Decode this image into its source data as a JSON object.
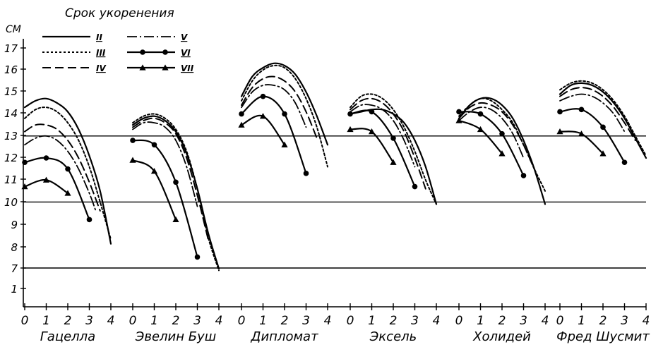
{
  "chart_data": {
    "type": "line",
    "title": "Срок укоренения",
    "ylabel": "СМ",
    "y_ticks": [
      "17",
      "16",
      "15",
      "14",
      "13",
      "12",
      "11",
      "10",
      "9",
      "8",
      "7",
      "1"
    ],
    "x_ticks": [
      "0",
      "1",
      "2",
      "3",
      "4"
    ],
    "reference_lines": [
      13,
      10,
      7
    ],
    "legend_placement": "top-left",
    "legend": [
      {
        "label": "II",
        "style": "solid"
      },
      {
        "label": "III",
        "style": "dotted"
      },
      {
        "label": "IV",
        "style": "dashed"
      },
      {
        "label": "V",
        "style": "dashdot"
      },
      {
        "label": "VI",
        "style": "circle"
      },
      {
        "label": "VII",
        "style": "triangle"
      }
    ],
    "groups": [
      {
        "label": "Гацелла",
        "series": [
          {
            "style": "solid",
            "x": [
              0,
              0.5,
              1,
              1.5,
              2,
              2.5,
              3,
              3.5,
              4
            ],
            "y": [
              14.3,
              14.6,
              14.7,
              14.5,
              14.1,
              13.3,
              12.1,
              10.5,
              8.1
            ]
          },
          {
            "style": "dotted",
            "x": [
              0,
              0.5,
              1,
              1.5,
              2,
              2.5,
              3,
              3.5,
              4
            ],
            "y": [
              13.8,
              14.2,
              14.3,
              14.1,
              13.6,
              12.8,
              11.6,
              10.0,
              8.3
            ]
          },
          {
            "style": "dashed",
            "x": [
              0,
              0.5,
              1,
              1.5,
              2,
              2.5,
              3,
              3.5
            ],
            "y": [
              13.2,
              13.5,
              13.5,
              13.3,
              12.8,
              12.0,
              10.9,
              9.6
            ]
          },
          {
            "style": "dashdot",
            "x": [
              0,
              0.5,
              1,
              1.5,
              2,
              2.5,
              3,
              3.3
            ],
            "y": [
              12.6,
              12.9,
              13.0,
              12.8,
              12.3,
              11.5,
              10.4,
              9.6
            ]
          },
          {
            "style": "circle",
            "x": [
              0,
              1,
              2,
              3
            ],
            "y": [
              11.8,
              12.0,
              11.5,
              9.2
            ]
          },
          {
            "style": "triangle",
            "x": [
              0,
              1,
              2
            ],
            "y": [
              10.7,
              11.0,
              10.4
            ]
          }
        ]
      },
      {
        "label": "Эвелин Буш",
        "series": [
          {
            "style": "solid",
            "x": [
              0,
              0.5,
              1,
              1.5,
              2,
              2.5,
              3,
              3.5,
              4
            ],
            "y": [
              13.5,
              13.8,
              13.9,
              13.7,
              13.2,
              12.2,
              10.6,
              8.6,
              6.8
            ]
          },
          {
            "style": "dotted",
            "x": [
              0,
              0.5,
              1,
              1.5,
              2,
              2.5,
              3,
              3.5,
              4
            ],
            "y": [
              13.6,
              13.9,
              14.0,
              13.8,
              13.3,
              12.3,
              10.6,
              8.4,
              6.3
            ]
          },
          {
            "style": "dashed",
            "x": [
              0,
              0.5,
              1,
              1.5,
              2,
              2.5,
              3,
              3.5
            ],
            "y": [
              13.4,
              13.7,
              13.8,
              13.6,
              13.1,
              12.0,
              10.3,
              8.3
            ]
          },
          {
            "style": "dashdot",
            "x": [
              0,
              0.5,
              1,
              1.5,
              2,
              2.5,
              3
            ],
            "y": [
              13.3,
              13.6,
              13.6,
              13.4,
              12.8,
              11.6,
              9.8
            ]
          },
          {
            "style": "circle",
            "x": [
              0,
              1,
              2,
              3
            ],
            "y": [
              12.8,
              12.6,
              10.9,
              7.5
            ]
          },
          {
            "style": "triangle",
            "x": [
              0,
              1,
              2
            ],
            "y": [
              11.9,
              11.4,
              9.2
            ]
          }
        ]
      },
      {
        "label": "Дипломат",
        "series": [
          {
            "style": "solid",
            "x": [
              0,
              0.5,
              1,
              1.5,
              2,
              2.5,
              3,
              3.5,
              4
            ],
            "y": [
              14.8,
              15.7,
              16.1,
              16.3,
              16.2,
              15.8,
              15.0,
              13.9,
              12.6
            ]
          },
          {
            "style": "dotted",
            "x": [
              0,
              0.5,
              1,
              1.5,
              2,
              2.5,
              3,
              3.5,
              4
            ],
            "y": [
              14.6,
              15.5,
              16.0,
              16.2,
              16.1,
              15.6,
              14.7,
              13.4,
              11.6
            ]
          },
          {
            "style": "dashed",
            "x": [
              0,
              0.5,
              1,
              1.5,
              2,
              2.5,
              3,
              3.5
            ],
            "y": [
              14.4,
              15.2,
              15.6,
              15.7,
              15.5,
              15.0,
              14.1,
              12.9
            ]
          },
          {
            "style": "dashdot",
            "x": [
              0,
              0.5,
              1,
              1.5,
              2,
              2.5,
              3
            ],
            "y": [
              14.3,
              15.0,
              15.3,
              15.3,
              15.1,
              14.5,
              13.4
            ]
          },
          {
            "style": "circle",
            "x": [
              0,
              1,
              2,
              3
            ],
            "y": [
              14.0,
              14.8,
              14.0,
              11.3
            ]
          },
          {
            "style": "triangle",
            "x": [
              0,
              1,
              2
            ],
            "y": [
              13.5,
              13.9,
              12.6
            ]
          }
        ]
      },
      {
        "label": "Эксель",
        "series": [
          {
            "style": "solid",
            "x": [
              0,
              0.5,
              1,
              1.5,
              2,
              2.5,
              3,
              3.5,
              4
            ],
            "y": [
              14.0,
              14.1,
              14.2,
              14.2,
              14.0,
              13.6,
              12.8,
              11.6,
              9.9
            ]
          },
          {
            "style": "dotted",
            "x": [
              0,
              0.5,
              1,
              1.5,
              2,
              2.5,
              3,
              3.5,
              4
            ],
            "y": [
              14.3,
              14.8,
              14.9,
              14.7,
              14.2,
              13.4,
              12.3,
              11.0,
              9.9
            ]
          },
          {
            "style": "dashed",
            "x": [
              0,
              0.5,
              1,
              1.5,
              2,
              2.5,
              3,
              3.5
            ],
            "y": [
              14.2,
              14.6,
              14.7,
              14.5,
              14.0,
              13.2,
              12.0,
              10.6
            ]
          },
          {
            "style": "dashdot",
            "x": [
              0,
              0.5,
              1,
              1.5,
              2,
              2.5,
              3
            ],
            "y": [
              14.1,
              14.4,
              14.4,
              14.2,
              13.7,
              12.8,
              11.6
            ]
          },
          {
            "style": "circle",
            "x": [
              0,
              1,
              2,
              3
            ],
            "y": [
              14.0,
              14.1,
              12.9,
              10.7
            ]
          },
          {
            "style": "triangle",
            "x": [
              0,
              1,
              2
            ],
            "y": [
              13.3,
              13.2,
              11.8
            ]
          }
        ]
      },
      {
        "label": "Холидей",
        "series": [
          {
            "style": "solid",
            "x": [
              0,
              0.5,
              1,
              1.5,
              2,
              2.5,
              3,
              3.5,
              4
            ],
            "y": [
              13.8,
              14.4,
              14.7,
              14.7,
              14.4,
              13.8,
              12.8,
              11.5,
              9.9
            ]
          },
          {
            "style": "dotted",
            "x": [
              0,
              0.5,
              1,
              1.5,
              2,
              2.5,
              3,
              3.5,
              4
            ],
            "y": [
              13.9,
              14.4,
              14.7,
              14.6,
              14.2,
              13.6,
              12.6,
              11.5,
              10.5
            ]
          },
          {
            "style": "dashed",
            "x": [
              0,
              0.5,
              1,
              1.5,
              2,
              2.5,
              3,
              3.5
            ],
            "y": [
              13.8,
              14.3,
              14.5,
              14.4,
              14.1,
              13.5,
              12.6,
              11.5
            ]
          },
          {
            "style": "dashdot",
            "x": [
              0,
              0.5,
              1,
              1.5,
              2,
              2.5,
              3
            ],
            "y": [
              13.7,
              14.1,
              14.3,
              14.2,
              13.8,
              13.1,
              12.0
            ]
          },
          {
            "style": "circle",
            "x": [
              0,
              1,
              2,
              3
            ],
            "y": [
              14.1,
              14.0,
              13.1,
              11.2
            ]
          },
          {
            "style": "triangle",
            "x": [
              0,
              1,
              2
            ],
            "y": [
              13.7,
              13.3,
              12.2
            ]
          }
        ]
      },
      {
        "label": "Фред Шусмит",
        "series": [
          {
            "style": "solid",
            "x": [
              0,
              0.5,
              1,
              1.5,
              2,
              2.5,
              3,
              3.5,
              4
            ],
            "y": [
              14.9,
              15.3,
              15.4,
              15.3,
              15.0,
              14.5,
              13.8,
              12.9,
              12.0
            ]
          },
          {
            "style": "dotted",
            "x": [
              0,
              0.5,
              1,
              1.5,
              2,
              2.5,
              3,
              3.5,
              4
            ],
            "y": [
              15.1,
              15.4,
              15.5,
              15.4,
              15.1,
              14.6,
              13.9,
              13.0,
              12.1
            ]
          },
          {
            "style": "dashed",
            "x": [
              0,
              0.5,
              1,
              1.5,
              2,
              2.5,
              3,
              3.5
            ],
            "y": [
              14.8,
              15.1,
              15.2,
              15.1,
              14.8,
              14.3,
              13.6,
              12.8
            ]
          },
          {
            "style": "dashdot",
            "x": [
              0,
              0.5,
              1,
              1.5,
              2,
              2.5,
              3
            ],
            "y": [
              14.6,
              14.8,
              14.9,
              14.8,
              14.5,
              14.0,
              13.2
            ]
          },
          {
            "style": "circle",
            "x": [
              0,
              1,
              2,
              3
            ],
            "y": [
              14.1,
              14.2,
              13.4,
              11.8
            ]
          },
          {
            "style": "triangle",
            "x": [
              0,
              1,
              2
            ],
            "y": [
              13.2,
              13.1,
              12.2
            ]
          }
        ]
      }
    ]
  }
}
